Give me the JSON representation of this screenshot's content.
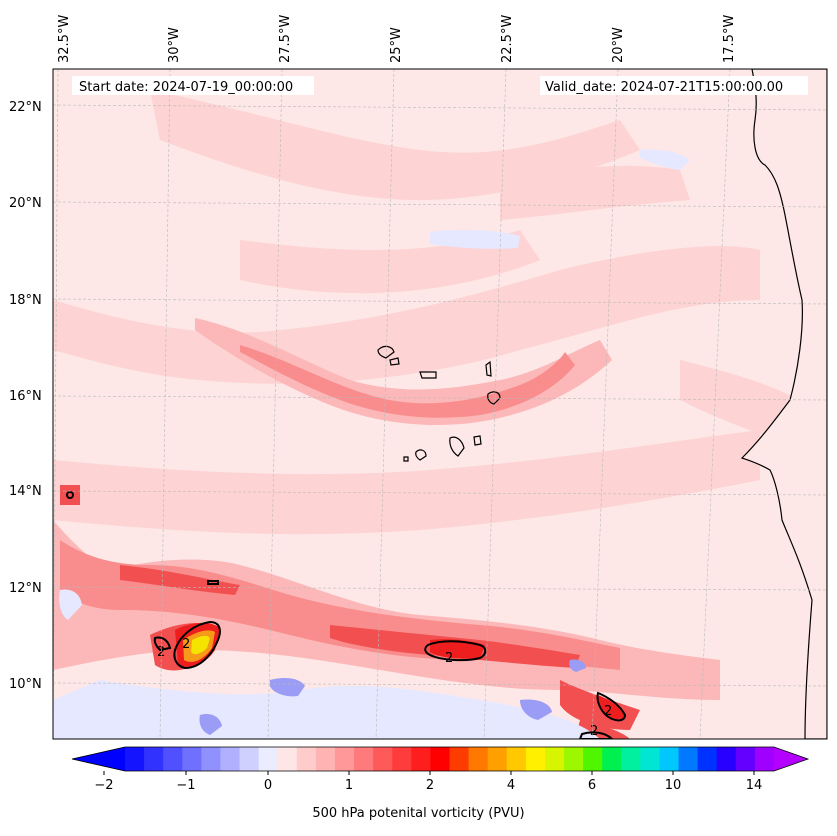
{
  "header": {
    "start_date": "Start date: 2024-07-19_00:00:00",
    "valid_date": "Valid_date: 2024-07-21T15:00:00.00"
  },
  "map": {
    "longitude_labels": [
      "32.5°W",
      "30°W",
      "27.5°W",
      "25°W",
      "22.5°W",
      "20°W",
      "17.5°W"
    ],
    "latitude_labels": [
      "22°N",
      "20°N",
      "18°N",
      "16°N",
      "14°N",
      "12°N",
      "10°N"
    ],
    "contour_label": "2",
    "field_colors": {
      "background": "#fde7e7",
      "light_pink": "#fdd3d3",
      "pink": "#fcb8b8",
      "medium_red": "#f98d8d",
      "red": "#f25050",
      "dark_red": "#ee1e1e",
      "orange": "#f79a1a",
      "yellow": "#f4e400",
      "light_blue": "#e6e8ff",
      "blue": "#9a9cf5"
    }
  },
  "colorbar": {
    "label": "500 hPa potenital vorticity (PVU)",
    "tick_labels": [
      "−2",
      "−1",
      "0",
      "1",
      "2",
      "4",
      "6",
      "10",
      "14"
    ],
    "colors": [
      "#1414ff",
      "#3232ff",
      "#5050ff",
      "#7070ff",
      "#9090ff",
      "#b0b0ff",
      "#d0d0ff",
      "#ececff",
      "#ffe6e6",
      "#ffcccc",
      "#ffb3b3",
      "#ff9999",
      "#ff7a7a",
      "#ff5a5a",
      "#ff3c3c",
      "#ff1e1e",
      "#ff0000",
      "#ff3c00",
      "#ff7800",
      "#ffa000",
      "#ffc800",
      "#fff000",
      "#d7f500",
      "#9cf700",
      "#50f500",
      "#00f050",
      "#00f0a0",
      "#00e6d2",
      "#00c8ff",
      "#0078ff",
      "#0032ff",
      "#2800ff",
      "#6400ff",
      "#a000ff"
    ],
    "extend_low_color": "#0000ff",
    "extend_high_color": "#b400ff"
  }
}
